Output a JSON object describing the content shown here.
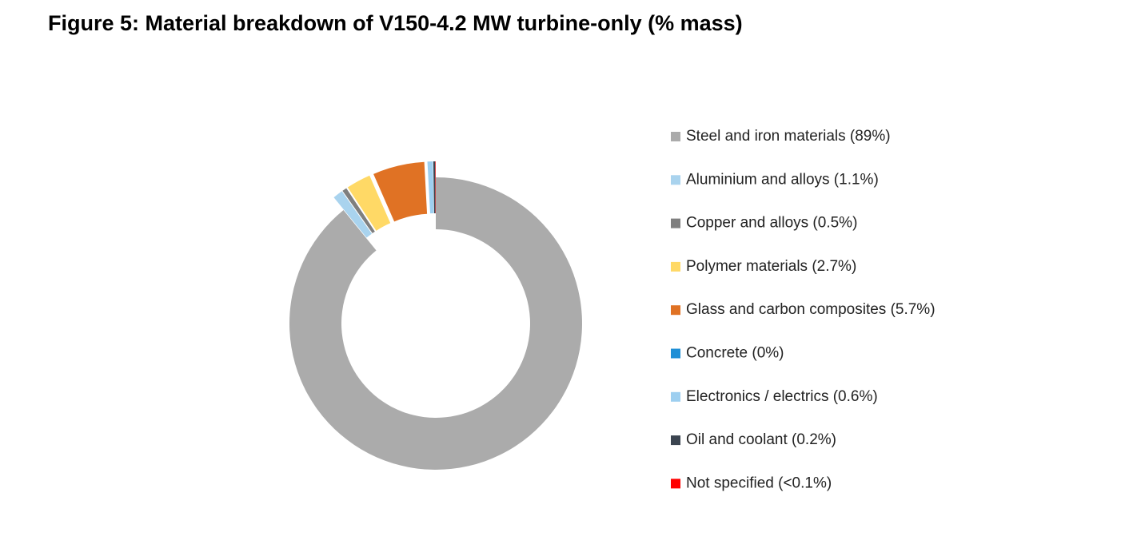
{
  "chart_data": {
    "type": "donut",
    "title": "Figure 5: Material breakdown of V150-4.2 MW turbine-only (% mass)",
    "series": [
      {
        "name": "Steel and iron materials (89%)",
        "color": "#ababab",
        "value": 89
      },
      {
        "name": "Aluminium and alloys (1.1%)",
        "color": "#a9d3ee",
        "value": 1.1
      },
      {
        "name": "Copper and alloys (0.5%)",
        "color": "#7f7f7f",
        "value": 0.5
      },
      {
        "name": "Polymer materials (2.7%)",
        "color": "#ffd966",
        "value": 2.7
      },
      {
        "name": "Glass and carbon composites (5.7%)",
        "color": "#e07224",
        "value": 5.7
      },
      {
        "name": "Concrete (0%)",
        "color": "#1f8fd6",
        "value": 0
      },
      {
        "name": "Electronics / electrics (0.6%)",
        "color": "#9dcff0",
        "value": 0.6
      },
      {
        "name": "Oil and coolant (0.2%)",
        "color": "#3b4450",
        "value": 0.2
      },
      {
        "name": "Not specified (<0.1%)",
        "color": "#ff0000",
        "value": 0.05
      }
    ],
    "legend": "right"
  }
}
